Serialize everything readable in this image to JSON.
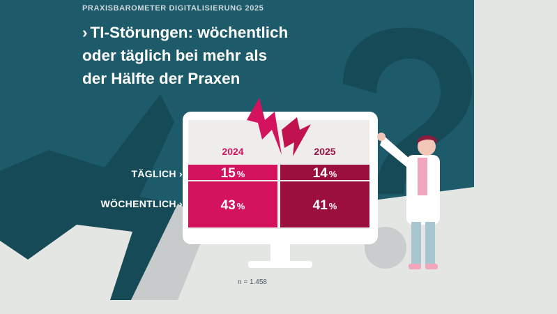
{
  "header": {
    "kicker": "PRAXISBAROMETER DIGITALISIERUNG 2025",
    "headline_chevron": "›",
    "headline_lines": [
      "TI-Störungen: wöchentlich",
      "oder täglich bei mehr als",
      "der Hälfte der Praxen"
    ]
  },
  "colors": {
    "teal_panel": "#1d5a6a",
    "teal_dark": "#164a57",
    "magenta": "#d4135f",
    "crimson": "#9a0f3e",
    "monitor": "#ffffff",
    "screen_bg": "#efedec"
  },
  "chart_data": {
    "type": "table",
    "columns": [
      "2024",
      "2025"
    ],
    "rows": [
      "TÄGLICH ›",
      "WÖCHENTLICH ›"
    ],
    "values": [
      [
        15,
        14
      ],
      [
        43,
        41
      ]
    ],
    "unit": "%"
  },
  "footnote": "n = 1.458"
}
